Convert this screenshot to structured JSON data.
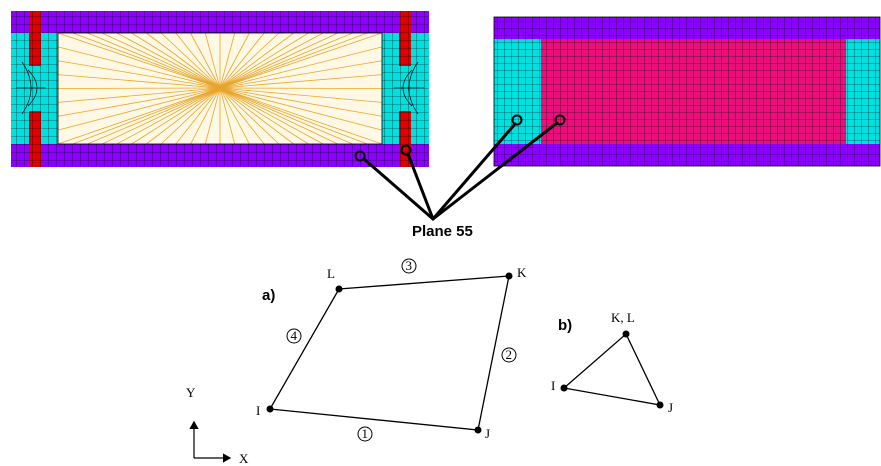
{
  "colors": {
    "flange": "#8b00ff",
    "edge_zone": "#00e0e0",
    "stud": "#e00000",
    "core_plain": "#fff8e4",
    "fan_lines": "#e8a52a",
    "core_mesh": "#ea0f7a",
    "grid_line": "#000000"
  },
  "callout": {
    "label": "Plane 55"
  },
  "element_a": {
    "tag": "a)",
    "nodes": {
      "L": "L",
      "K": "K",
      "I": "I",
      "J": "J"
    },
    "faces": {
      "f1": "1",
      "f2": "2",
      "f3": "3",
      "f4": "4"
    }
  },
  "element_b": {
    "tag": "b)",
    "nodes": {
      "KL": "K, L",
      "I": "I",
      "J": "J"
    }
  },
  "axes": {
    "x": "X",
    "y": "Y"
  }
}
